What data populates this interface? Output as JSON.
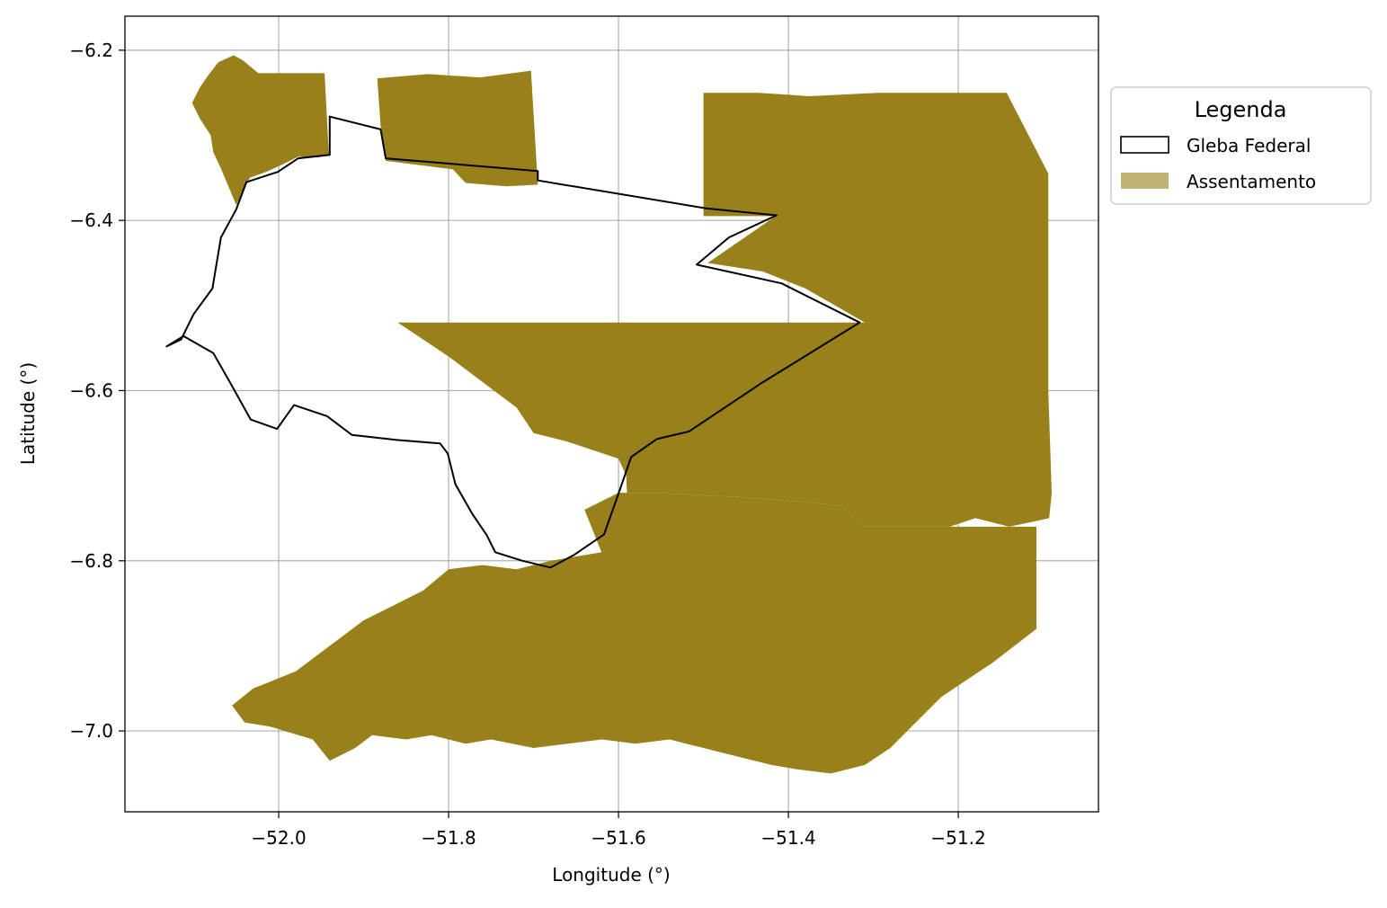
{
  "chart_data": {
    "type": "map",
    "xlabel": "Longitude (°)",
    "ylabel": "Latitude (°)",
    "xlim": [
      -52.181,
      -51.035
    ],
    "ylim": [
      -7.095,
      -6.16
    ],
    "x_ticks": [
      -52.0,
      -51.8,
      -51.6,
      -51.4,
      -51.2
    ],
    "y_ticks": [
      -6.2,
      -6.4,
      -6.6,
      -6.8,
      -7.0
    ],
    "x_tick_labels": [
      "−52.0",
      "−51.8",
      "−51.6",
      "−51.4",
      "−51.2"
    ],
    "y_tick_labels": [
      "−6.2",
      "−6.4",
      "−6.6",
      "−6.8",
      "−7.0"
    ],
    "grid": true,
    "legend_position": "outside-right",
    "legend": {
      "title": "Legenda",
      "entries": [
        {
          "label": "Gleba Federal",
          "style": "outline",
          "color": "#000000"
        },
        {
          "label": "Assentamento",
          "style": "fill",
          "color": "#bfb274"
        }
      ]
    },
    "layers": [
      {
        "name": "Assentamento",
        "fill": "#98811a",
        "polygons": [
          [
            [
              -52.102,
              -6.262
            ],
            [
              -52.093,
              -6.244
            ],
            [
              -52.082,
              -6.228
            ],
            [
              -52.071,
              -6.214
            ],
            [
              -52.053,
              -6.206
            ],
            [
              -52.042,
              -6.212
            ],
            [
              -52.024,
              -6.227
            ],
            [
              -51.946,
              -6.227
            ],
            [
              -51.941,
              -6.322
            ],
            [
              -51.953,
              -6.326
            ],
            [
              -51.977,
              -6.325
            ],
            [
              -51.997,
              -6.335
            ],
            [
              -52.015,
              -6.343
            ],
            [
              -52.034,
              -6.35
            ],
            [
              -52.05,
              -6.382
            ],
            [
              -52.068,
              -6.339
            ],
            [
              -52.077,
              -6.32
            ],
            [
              -52.08,
              -6.3
            ],
            [
              -52.093,
              -6.28
            ]
          ],
          [
            [
              -51.884,
              -6.233
            ],
            [
              -51.824,
              -6.228
            ],
            [
              -51.763,
              -6.232
            ],
            [
              -51.703,
              -6.224
            ],
            [
              -51.695,
              -6.358
            ],
            [
              -51.732,
              -6.36
            ],
            [
              -51.78,
              -6.356
            ],
            [
              -51.795,
              -6.34
            ],
            [
              -51.874,
              -6.33
            ],
            [
              -51.88,
              -6.29
            ]
          ],
          [
            [
              -51.5,
              -6.25
            ],
            [
              -51.435,
              -6.25
            ],
            [
              -51.375,
              -6.254
            ],
            [
              -51.295,
              -6.25
            ],
            [
              -51.143,
              -6.25
            ],
            [
              -51.094,
              -6.345
            ],
            [
              -51.094,
              -6.6
            ],
            [
              -51.09,
              -6.72
            ],
            [
              -51.093,
              -6.75
            ],
            [
              -51.14,
              -6.76
            ],
            [
              -51.18,
              -6.75
            ],
            [
              -51.21,
              -6.76
            ],
            [
              -51.31,
              -6.76
            ],
            [
              -51.34,
              -6.735
            ],
            [
              -51.39,
              -6.73
            ],
            [
              -51.46,
              -6.725
            ],
            [
              -51.56,
              -6.72
            ],
            [
              -51.59,
              -6.72
            ],
            [
              -51.591,
              -6.7
            ],
            [
              -51.6,
              -6.68
            ],
            [
              -51.63,
              -6.67
            ],
            [
              -51.66,
              -6.66
            ],
            [
              -51.7,
              -6.65
            ],
            [
              -51.72,
              -6.62
            ],
            [
              -51.76,
              -6.59
            ],
            [
              -51.8,
              -6.56
            ],
            [
              -51.86,
              -6.52
            ],
            [
              -51.31,
              -6.52
            ],
            [
              -51.38,
              -6.48
            ],
            [
              -51.43,
              -6.46
            ],
            [
              -51.495,
              -6.45
            ],
            [
              -51.415,
              -6.395
            ],
            [
              -51.5,
              -6.395
            ]
          ],
          [
            [
              -51.6,
              -6.72
            ],
            [
              -51.64,
              -6.74
            ],
            [
              -51.62,
              -6.79
            ],
            [
              -51.68,
              -6.8
            ],
            [
              -51.72,
              -6.81
            ],
            [
              -51.76,
              -6.805
            ],
            [
              -51.8,
              -6.81
            ],
            [
              -51.83,
              -6.835
            ],
            [
              -51.86,
              -6.85
            ],
            [
              -51.9,
              -6.87
            ],
            [
              -51.94,
              -6.9
            ],
            [
              -51.98,
              -6.93
            ],
            [
              -52.03,
              -6.95
            ],
            [
              -52.055,
              -6.97
            ],
            [
              -52.04,
              -6.99
            ],
            [
              -52.01,
              -6.995
            ],
            [
              -51.96,
              -7.01
            ],
            [
              -51.94,
              -7.035
            ],
            [
              -51.91,
              -7.02
            ],
            [
              -51.89,
              -7.005
            ],
            [
              -51.85,
              -7.01
            ],
            [
              -51.82,
              -7.005
            ],
            [
              -51.78,
              -7.015
            ],
            [
              -51.75,
              -7.01
            ],
            [
              -51.7,
              -7.02
            ],
            [
              -51.66,
              -7.015
            ],
            [
              -51.62,
              -7.01
            ],
            [
              -51.58,
              -7.015
            ],
            [
              -51.54,
              -7.01
            ],
            [
              -51.5,
              -7.02
            ],
            [
              -51.46,
              -7.03
            ],
            [
              -51.42,
              -7.04
            ],
            [
              -51.39,
              -7.045
            ],
            [
              -51.35,
              -7.05
            ],
            [
              -51.31,
              -7.04
            ],
            [
              -51.28,
              -7.02
            ],
            [
              -51.25,
              -6.99
            ],
            [
              -51.22,
              -6.96
            ],
            [
              -51.19,
              -6.94
            ],
            [
              -51.16,
              -6.92
            ],
            [
              -51.108,
              -6.88
            ],
            [
              -51.108,
              -6.76
            ],
            [
              -51.31,
              -6.76
            ],
            [
              -51.34,
              -6.735
            ],
            [
              -51.39,
              -6.73
            ],
            [
              -51.46,
              -6.725
            ],
            [
              -51.56,
              -6.72
            ]
          ]
        ]
      },
      {
        "name": "Gleba Federal",
        "stroke": "#000000",
        "polygons": [
          [
            [
              -52.132,
              -6.548
            ],
            [
              -52.112,
              -6.536
            ],
            [
              -52.077,
              -6.556
            ],
            [
              -52.058,
              -6.589
            ],
            [
              -52.033,
              -6.634
            ],
            [
              -52.002,
              -6.645
            ],
            [
              -51.982,
              -6.617
            ],
            [
              -51.943,
              -6.63
            ],
            [
              -51.914,
              -6.652
            ],
            [
              -51.861,
              -6.658
            ],
            [
              -51.81,
              -6.662
            ],
            [
              -51.801,
              -6.674
            ],
            [
              -51.792,
              -6.71
            ],
            [
              -51.772,
              -6.745
            ],
            [
              -51.755,
              -6.77
            ],
            [
              -51.745,
              -6.79
            ],
            [
              -51.713,
              -6.8
            ],
            [
              -51.68,
              -6.808
            ],
            [
              -51.652,
              -6.793
            ],
            [
              -51.617,
              -6.769
            ],
            [
              -51.6,
              -6.721
            ],
            [
              -51.585,
              -6.678
            ],
            [
              -51.555,
              -6.657
            ],
            [
              -51.517,
              -6.648
            ],
            [
              -51.433,
              -6.592
            ],
            [
              -51.316,
              -6.52
            ],
            [
              -51.408,
              -6.474
            ],
            [
              -51.508,
              -6.452
            ],
            [
              -51.47,
              -6.42
            ],
            [
              -51.414,
              -6.394
            ],
            [
              -51.496,
              -6.386
            ],
            [
              -51.695,
              -6.353
            ],
            [
              -51.695,
              -6.342
            ],
            [
              -51.874,
              -6.327
            ],
            [
              -51.88,
              -6.293
            ],
            [
              -51.94,
              -6.278
            ],
            [
              -51.94,
              -6.323
            ],
            [
              -51.977,
              -6.327
            ],
            [
              -52.001,
              -6.343
            ],
            [
              -52.038,
              -6.355
            ],
            [
              -52.05,
              -6.387
            ],
            [
              -52.068,
              -6.42
            ],
            [
              -52.078,
              -6.48
            ],
            [
              -52.1,
              -6.51
            ],
            [
              -52.115,
              -6.54
            ]
          ]
        ]
      }
    ]
  }
}
